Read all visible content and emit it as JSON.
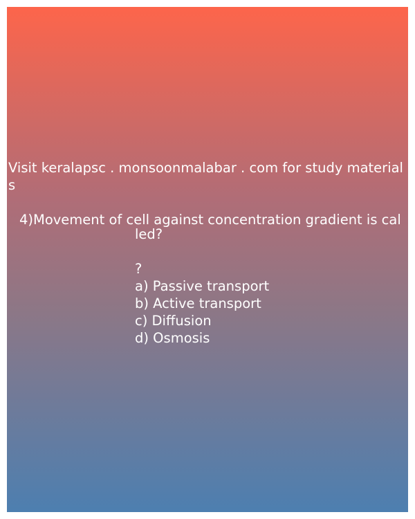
{
  "promo": {
    "text": "Visit keralapsc . monsoonmalabar . com for study materials"
  },
  "question": {
    "line1": "4)Movement of cell against concentration gradient is cal",
    "line2": "led?",
    "mark": "?",
    "options": [
      "a) Passive transport",
      "b) Active transport",
      "c) Diffusion",
      "d) Osmosis"
    ]
  },
  "colors": {
    "gradient_top": "#fd654b",
    "gradient_bottom": "#4d7fb0",
    "text": "#ffffff"
  }
}
